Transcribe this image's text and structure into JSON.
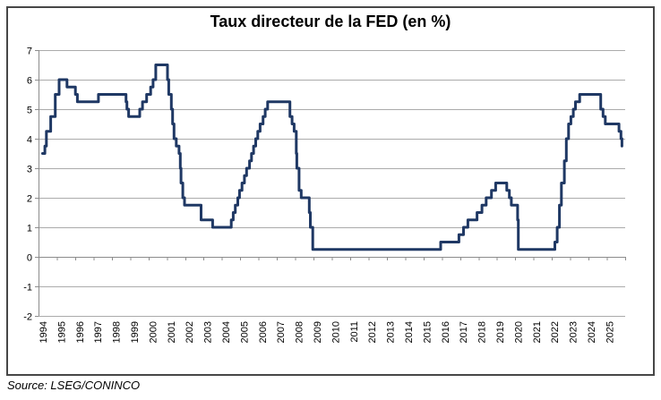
{
  "chart_data": {
    "type": "line",
    "title": "Taux directeur de la FED (en %)",
    "source": "Source: LSEG/CONINCO",
    "xlabel": "",
    "ylabel": "",
    "ylim": [
      -2,
      7
    ],
    "y_tick_step": 1,
    "grid": true,
    "legend": "none",
    "x_ticks": [
      1994,
      1995,
      1996,
      1997,
      1998,
      1999,
      2000,
      2001,
      2002,
      2003,
      2004,
      2005,
      2006,
      2007,
      2008,
      2009,
      2010,
      2011,
      2012,
      2013,
      2014,
      2015,
      2016,
      2017,
      2018,
      2019,
      2020,
      2021,
      2022,
      2023,
      2024,
      2025
    ],
    "colors": {
      "line": "#1f3864",
      "grid": "#ababab",
      "axis": "#8c8c8c",
      "frame_border": "#474747",
      "text": "#000000",
      "background": "#ffffff"
    },
    "series": [
      {
        "name": "Taux directeur de la FED",
        "interpolation": "step-after",
        "points": [
          [
            1994.17,
            3.5
          ],
          [
            1994.3,
            3.75
          ],
          [
            1994.38,
            4.25
          ],
          [
            1994.62,
            4.75
          ],
          [
            1994.87,
            5.5
          ],
          [
            1995.08,
            6.0
          ],
          [
            1995.51,
            5.75
          ],
          [
            1995.97,
            5.5
          ],
          [
            1996.08,
            5.25
          ],
          [
            1997.23,
            5.5
          ],
          [
            1998.74,
            5.25
          ],
          [
            1998.79,
            5.0
          ],
          [
            1998.88,
            4.75
          ],
          [
            1999.49,
            5.0
          ],
          [
            1999.64,
            5.25
          ],
          [
            1999.87,
            5.5
          ],
          [
            2000.09,
            5.75
          ],
          [
            2000.22,
            6.0
          ],
          [
            2000.37,
            6.5
          ],
          [
            2001.01,
            6.0
          ],
          [
            2001.08,
            5.5
          ],
          [
            2001.22,
            5.0
          ],
          [
            2001.29,
            4.5
          ],
          [
            2001.37,
            4.0
          ],
          [
            2001.49,
            3.75
          ],
          [
            2001.64,
            3.5
          ],
          [
            2001.71,
            3.0
          ],
          [
            2001.75,
            2.5
          ],
          [
            2001.85,
            2.0
          ],
          [
            2001.94,
            1.75
          ],
          [
            2002.85,
            1.25
          ],
          [
            2003.48,
            1.0
          ],
          [
            2004.5,
            1.25
          ],
          [
            2004.61,
            1.5
          ],
          [
            2004.72,
            1.75
          ],
          [
            2004.86,
            2.0
          ],
          [
            2004.95,
            2.25
          ],
          [
            2005.09,
            2.5
          ],
          [
            2005.22,
            2.75
          ],
          [
            2005.34,
            3.0
          ],
          [
            2005.5,
            3.25
          ],
          [
            2005.61,
            3.5
          ],
          [
            2005.72,
            3.75
          ],
          [
            2005.84,
            4.0
          ],
          [
            2005.95,
            4.25
          ],
          [
            2006.08,
            4.5
          ],
          [
            2006.24,
            4.75
          ],
          [
            2006.36,
            5.0
          ],
          [
            2006.49,
            5.25
          ],
          [
            2007.71,
            4.75
          ],
          [
            2007.83,
            4.5
          ],
          [
            2007.94,
            4.25
          ],
          [
            2008.06,
            3.5
          ],
          [
            2008.09,
            3.0
          ],
          [
            2008.21,
            2.25
          ],
          [
            2008.33,
            2.0
          ],
          [
            2008.77,
            1.5
          ],
          [
            2008.83,
            1.0
          ],
          [
            2008.96,
            0.25
          ],
          [
            2015.96,
            0.5
          ],
          [
            2016.96,
            0.75
          ],
          [
            2017.21,
            1.0
          ],
          [
            2017.45,
            1.25
          ],
          [
            2017.95,
            1.5
          ],
          [
            2018.22,
            1.75
          ],
          [
            2018.45,
            2.0
          ],
          [
            2018.74,
            2.25
          ],
          [
            2018.97,
            2.5
          ],
          [
            2019.58,
            2.25
          ],
          [
            2019.72,
            2.0
          ],
          [
            2019.83,
            1.75
          ],
          [
            2020.17,
            1.25
          ],
          [
            2020.21,
            0.25
          ],
          [
            2022.21,
            0.5
          ],
          [
            2022.34,
            1.0
          ],
          [
            2022.46,
            1.75
          ],
          [
            2022.57,
            2.5
          ],
          [
            2022.73,
            3.25
          ],
          [
            2022.84,
            4.0
          ],
          [
            2022.96,
            4.5
          ],
          [
            2023.09,
            4.75
          ],
          [
            2023.22,
            5.0
          ],
          [
            2023.34,
            5.25
          ],
          [
            2023.57,
            5.5
          ],
          [
            2024.72,
            5.0
          ],
          [
            2024.85,
            4.75
          ],
          [
            2024.97,
            4.5
          ],
          [
            2025.72,
            4.25
          ],
          [
            2025.83,
            4.0
          ],
          [
            2025.88,
            3.75
          ]
        ]
      }
    ]
  }
}
